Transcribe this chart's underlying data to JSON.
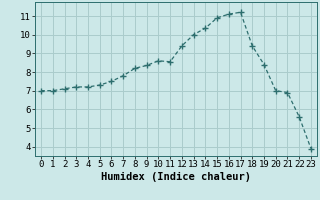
{
  "x": [
    0,
    1,
    2,
    3,
    4,
    5,
    6,
    7,
    8,
    9,
    10,
    11,
    12,
    13,
    14,
    15,
    16,
    17,
    18,
    19,
    20,
    21,
    22,
    23
  ],
  "y": [
    7.0,
    7.0,
    7.1,
    7.2,
    7.2,
    7.3,
    7.5,
    7.8,
    8.2,
    8.35,
    8.6,
    8.55,
    9.4,
    10.0,
    10.35,
    10.9,
    11.1,
    11.2,
    9.4,
    8.4,
    7.0,
    6.9,
    5.6,
    3.9
  ],
  "line_color": "#2d6e6e",
  "marker": "+",
  "marker_size": 4,
  "bg_color": "#cce8e8",
  "grid_color": "#aacccc",
  "xlabel": "Humidex (Indice chaleur)",
  "xlim": [
    -0.5,
    23.5
  ],
  "ylim": [
    3.5,
    11.75
  ],
  "yticks": [
    4,
    5,
    6,
    7,
    8,
    9,
    10,
    11
  ],
  "xticks": [
    0,
    1,
    2,
    3,
    4,
    5,
    6,
    7,
    8,
    9,
    10,
    11,
    12,
    13,
    14,
    15,
    16,
    17,
    18,
    19,
    20,
    21,
    22,
    23
  ],
  "label_fontsize": 7.5,
  "tick_fontsize": 6.5
}
